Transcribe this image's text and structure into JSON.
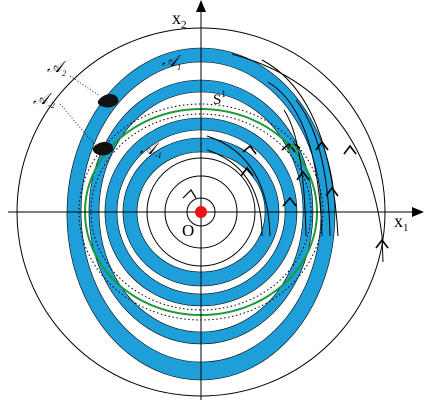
{
  "colors": {
    "band": "#1e9fd9",
    "circle": "#000000",
    "axis": "#000000",
    "invariant_circle": "#1a9a3a",
    "origin": "#ee1111",
    "arrow": "#000000"
  },
  "labels": {
    "x1_main": "x",
    "x1_sub": "1",
    "x2_main": "x",
    "x2_sub": "2",
    "origin": "O",
    "s_main": "S",
    "s_sup": "1",
    "a_label_main": "𝒜",
    "a1_sub": "1",
    "a2_sub": "2",
    "am1_sub": "-1",
    "am2_sub": "-2"
  },
  "diagram": {
    "bands": [
      {
        "id": "A1",
        "label": "𝒜1"
      },
      {
        "id": "A-1",
        "label": "𝒜-1"
      },
      {
        "id": "band-outer-middle"
      },
      {
        "id": "band-inner-middle"
      },
      {
        "id": "band-innermost"
      }
    ],
    "invariant_circle": "S1",
    "equilibrium": "O"
  }
}
